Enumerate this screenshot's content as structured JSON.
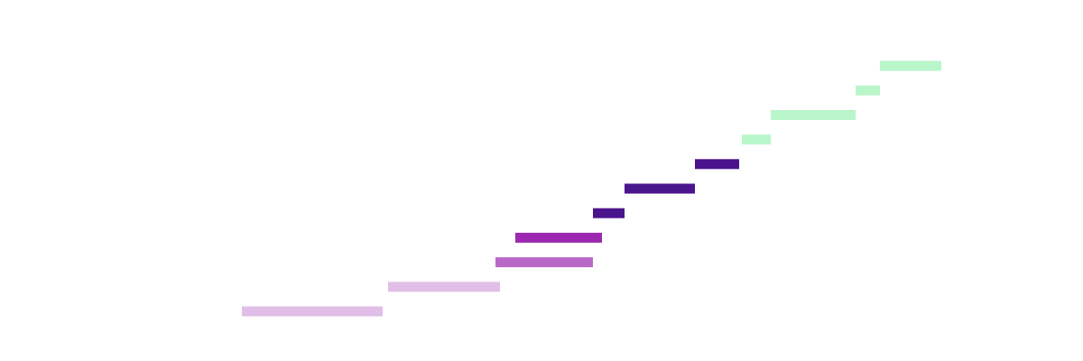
{
  "chart_data": {
    "type": "bar",
    "orientation": "horizontal-range",
    "title": "",
    "xlabel": "",
    "ylabel": "",
    "grid": false,
    "legend": "none",
    "xlim": [
      0,
      1200
    ],
    "colors": {
      "light_lavender": "#e1bee7",
      "medium_purple": "#ba68c8",
      "purple": "#9c27b0",
      "deep_purple": "#4a148c",
      "mint_green": "#b9f6ca"
    },
    "series": [
      {
        "task": "1",
        "start": 268,
        "end": 424,
        "color": "#e1bee7"
      },
      {
        "task": "2",
        "start": 430,
        "end": 554,
        "color": "#e1bee7"
      },
      {
        "task": "3",
        "start": 549,
        "end": 657,
        "color": "#ba68c8"
      },
      {
        "task": "4",
        "start": 571,
        "end": 667,
        "color": "#9c27b0"
      },
      {
        "task": "5",
        "start": 657,
        "end": 692,
        "color": "#4a148c"
      },
      {
        "task": "6",
        "start": 692,
        "end": 770,
        "color": "#4a148c"
      },
      {
        "task": "7",
        "start": 770,
        "end": 819,
        "color": "#4a148c"
      },
      {
        "task": "8",
        "start": 822,
        "end": 854,
        "color": "#b9f6ca"
      },
      {
        "task": "9",
        "start": 854,
        "end": 948,
        "color": "#b9f6ca"
      },
      {
        "task": "10",
        "start": 948,
        "end": 975,
        "color": "#b9f6ca"
      },
      {
        "task": "11",
        "start": 975,
        "end": 1043,
        "color": "#b9f6ca"
      }
    ]
  }
}
